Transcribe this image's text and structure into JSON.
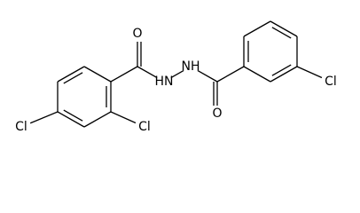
{
  "molecule": {
    "labels": [
      "O",
      "HN",
      "NH",
      "O",
      "Cl",
      "Cl",
      "Cl"
    ]
  }
}
